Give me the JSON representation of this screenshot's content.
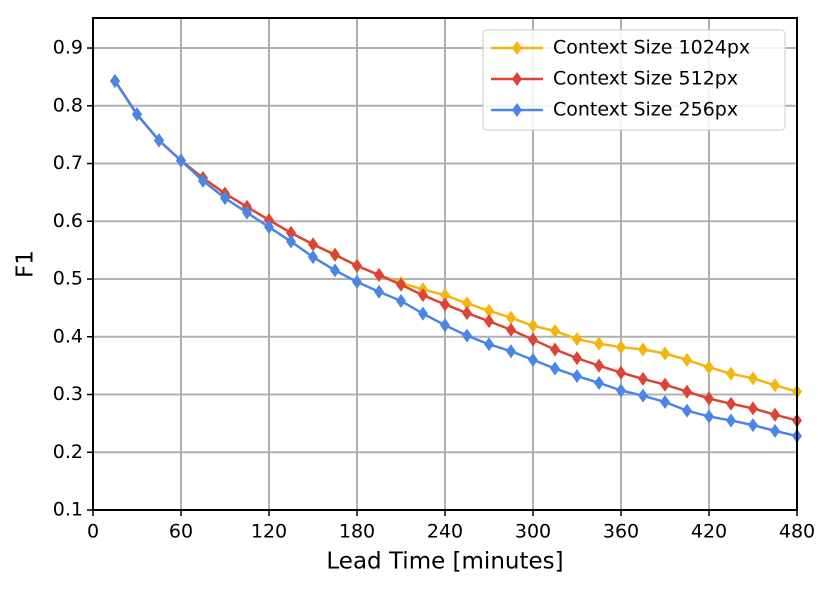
{
  "chart_data": {
    "type": "line",
    "xlabel": "Lead Time [minutes]",
    "ylabel": "F1",
    "x": [
      15,
      30,
      45,
      60,
      75,
      90,
      105,
      120,
      135,
      150,
      165,
      180,
      195,
      210,
      225,
      240,
      255,
      270,
      285,
      300,
      315,
      330,
      345,
      360,
      375,
      390,
      405,
      420,
      435,
      450,
      465,
      480
    ],
    "series": [
      {
        "name": "Context Size 1024px",
        "color": "#f5b50f",
        "values": [
          0.843,
          0.785,
          0.74,
          0.705,
          0.675,
          0.648,
          0.625,
          0.602,
          0.58,
          0.56,
          0.542,
          0.523,
          0.507,
          0.493,
          0.482,
          0.472,
          0.458,
          0.445,
          0.433,
          0.419,
          0.41,
          0.396,
          0.388,
          0.382,
          0.378,
          0.371,
          0.36,
          0.347,
          0.336,
          0.328,
          0.316,
          0.305
        ]
      },
      {
        "name": "Context Size 512px",
        "color": "#db4437",
        "values": [
          0.843,
          0.785,
          0.74,
          0.705,
          0.675,
          0.648,
          0.625,
          0.602,
          0.58,
          0.56,
          0.542,
          0.523,
          0.507,
          0.49,
          0.472,
          0.456,
          0.441,
          0.427,
          0.412,
          0.395,
          0.378,
          0.363,
          0.35,
          0.338,
          0.327,
          0.317,
          0.305,
          0.293,
          0.284,
          0.276,
          0.265,
          0.255
        ]
      },
      {
        "name": "Context Size 256px",
        "color": "#4a86e8",
        "values": [
          0.843,
          0.785,
          0.74,
          0.705,
          0.67,
          0.64,
          0.615,
          0.59,
          0.565,
          0.538,
          0.515,
          0.495,
          0.478,
          0.462,
          0.44,
          0.42,
          0.402,
          0.387,
          0.375,
          0.36,
          0.345,
          0.332,
          0.32,
          0.307,
          0.298,
          0.287,
          0.272,
          0.262,
          0.255,
          0.247,
          0.237,
          0.228
        ]
      }
    ],
    "xlim": [
      0,
      480
    ],
    "xticks": [
      0,
      60,
      120,
      180,
      240,
      300,
      360,
      420,
      480
    ],
    "ylim": [
      0.1,
      0.952
    ],
    "yticks": [
      0.1,
      0.2,
      0.3,
      0.4,
      0.5,
      0.6,
      0.7,
      0.8,
      0.9
    ],
    "grid": true,
    "legend": "upper right"
  }
}
